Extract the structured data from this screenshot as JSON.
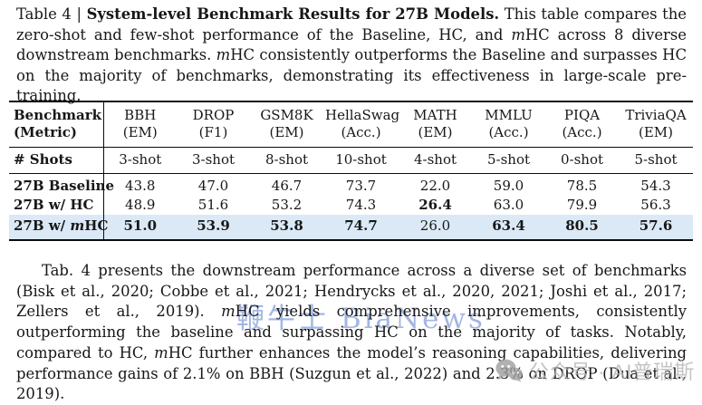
{
  "caption": {
    "label": "Table 4",
    "separator": "|",
    "title": "System-level Benchmark Results for 27B Models.",
    "body": [
      {
        "t": "This table compares the zero-shot and few-shot performance of the Baseline, HC, and "
      },
      {
        "t": "m",
        "i": true
      },
      {
        "t": "HC across 8 diverse downstream benchmarks. "
      },
      {
        "t": "m",
        "i": true
      },
      {
        "t": "HC consistently outperforms the Baseline and surpasses HC on the majority of benchmarks, demonstrating its effectiveness in large-scale pre-training."
      }
    ]
  },
  "table": {
    "corner_line1": "Benchmark",
    "corner_line2": "(Metric)",
    "shots_label": "# Shots",
    "columns": [
      {
        "name": "BBH",
        "metric": "(EM)",
        "shots": "3-shot"
      },
      {
        "name": "DROP",
        "metric": "(F1)",
        "shots": "3-shot"
      },
      {
        "name": "GSM8K",
        "metric": "(EM)",
        "shots": "8-shot"
      },
      {
        "name": "HellaSwag",
        "metric": "(Acc.)",
        "shots": "10-shot"
      },
      {
        "name": "MATH",
        "metric": "(EM)",
        "shots": "4-shot"
      },
      {
        "name": "MMLU",
        "metric": "(Acc.)",
        "shots": "5-shot"
      },
      {
        "name": "PIQA",
        "metric": "(Acc.)",
        "shots": "0-shot"
      },
      {
        "name": "TriviaQA",
        "metric": "(EM)",
        "shots": "5-shot"
      }
    ],
    "rows": [
      {
        "label_parts": [
          {
            "t": "27B Baseline"
          }
        ],
        "highlight": false,
        "values": [
          {
            "v": "43.8",
            "b": false
          },
          {
            "v": "47.0",
            "b": false
          },
          {
            "v": "46.7",
            "b": false
          },
          {
            "v": "73.7",
            "b": false
          },
          {
            "v": "22.0",
            "b": false
          },
          {
            "v": "59.0",
            "b": false
          },
          {
            "v": "78.5",
            "b": false
          },
          {
            "v": "54.3",
            "b": false
          }
        ]
      },
      {
        "label_parts": [
          {
            "t": "27B w/ HC"
          }
        ],
        "highlight": false,
        "values": [
          {
            "v": "48.9",
            "b": false
          },
          {
            "v": "51.6",
            "b": false
          },
          {
            "v": "53.2",
            "b": false
          },
          {
            "v": "74.3",
            "b": false
          },
          {
            "v": "26.4",
            "b": true
          },
          {
            "v": "63.0",
            "b": false
          },
          {
            "v": "79.9",
            "b": false
          },
          {
            "v": "56.3",
            "b": false
          }
        ]
      },
      {
        "label_parts": [
          {
            "t": "27B w/ "
          },
          {
            "t": "m",
            "i": true
          },
          {
            "t": "HC"
          }
        ],
        "highlight": true,
        "values": [
          {
            "v": "51.0",
            "b": true
          },
          {
            "v": "53.9",
            "b": true
          },
          {
            "v": "53.8",
            "b": true
          },
          {
            "v": "74.7",
            "b": true
          },
          {
            "v": "26.0",
            "b": false
          },
          {
            "v": "63.4",
            "b": true
          },
          {
            "v": "80.5",
            "b": true
          },
          {
            "v": "57.6",
            "b": true
          }
        ]
      }
    ]
  },
  "paragraph": {
    "body": [
      {
        "t": "Tab. 4 presents the downstream performance across a diverse set of benchmarks (Bisk et al., 2020; Cobbe et al., 2021; Hendrycks et al., 2020, 2021; Joshi et al., 2017; Zellers et al., 2019). "
      },
      {
        "t": "m",
        "i": true
      },
      {
        "t": "HC yields comprehensive improvements, consistently outperforming the baseline and surpassing HC on the majority of tasks. Notably, compared to HC, "
      },
      {
        "t": "m",
        "i": true
      },
      {
        "t": "HC further enhances the model’s reasoning capabilities, delivering performance gains of 2.1% on BBH (Suzgun et al., 2022) and 2.3% on DROP (Dua et al., 2019)."
      }
    ]
  },
  "watermarks": {
    "center": {
      "text": "鞭牛士 BiaNews"
    },
    "corner": {
      "text": "公众号 · AI普瑞斯",
      "icon": "wechat-icon"
    }
  },
  "colors": {
    "highlight_row": "#dbe9f6",
    "watermark_blue": "#4a6fc8",
    "watermark_gray": "#b5b5b5",
    "watermark_icon": "#9e9e9e"
  }
}
